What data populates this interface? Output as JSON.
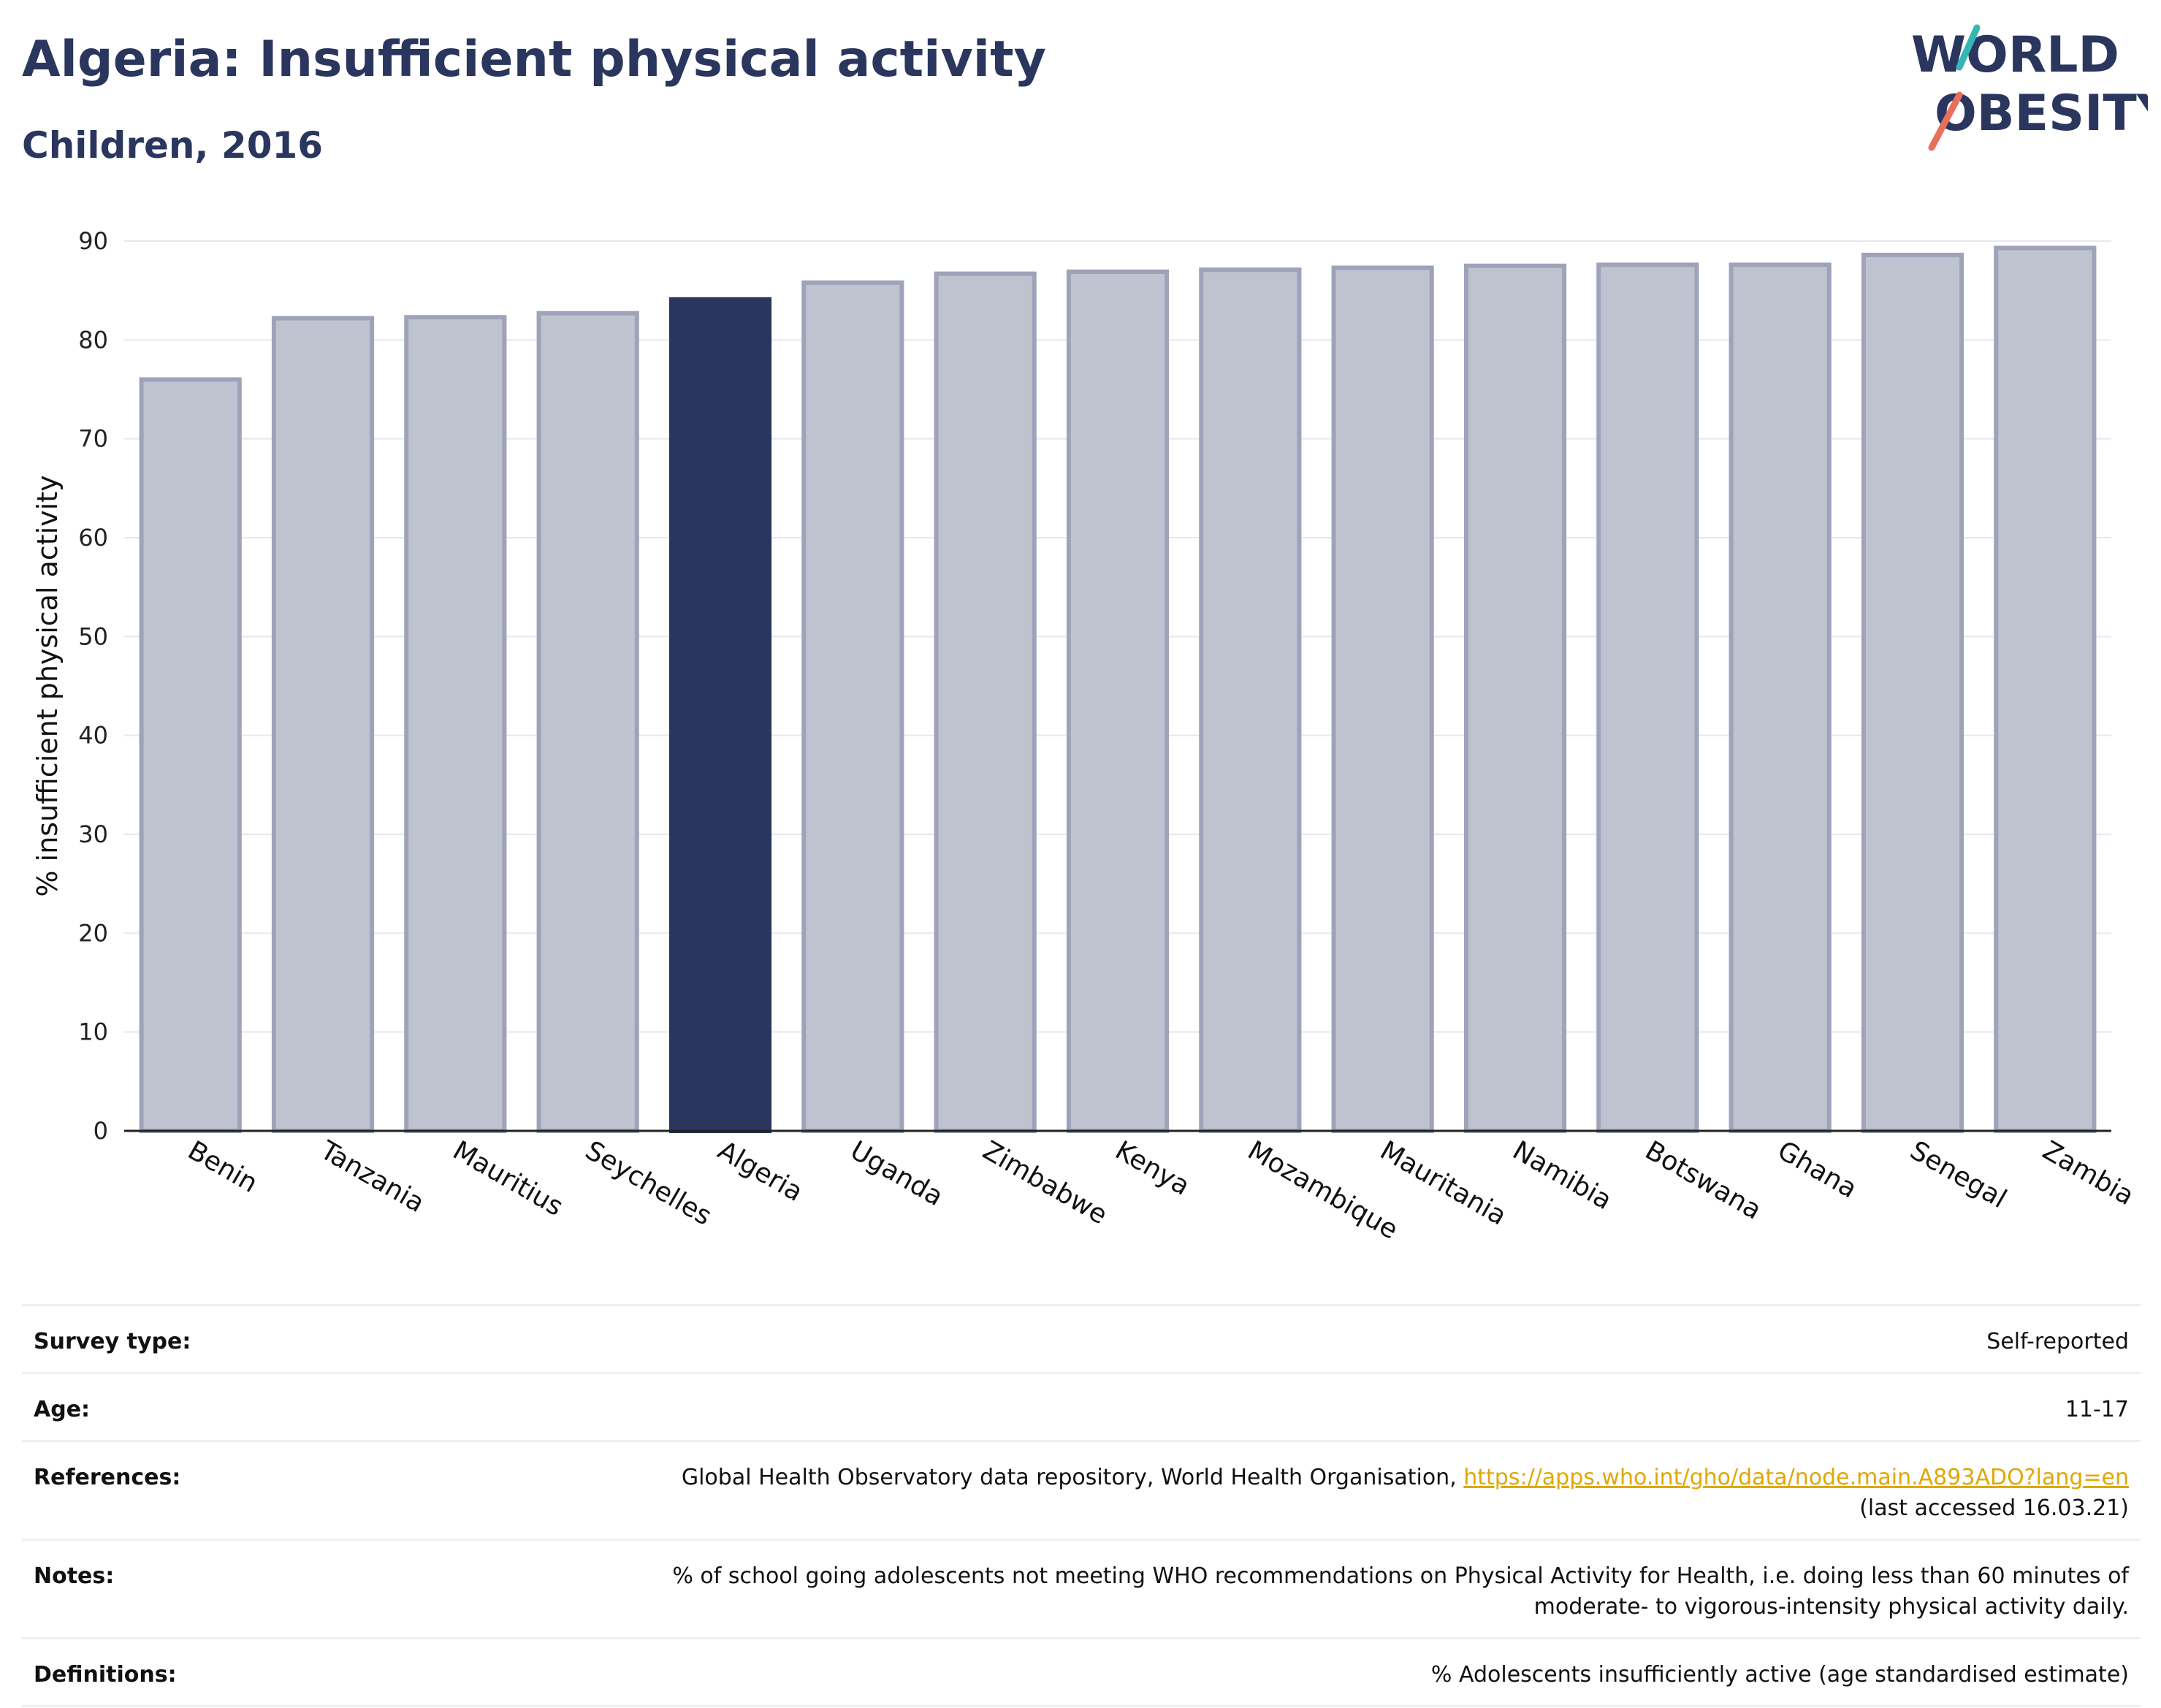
{
  "header": {
    "title": "Algeria: Insufficient physical activity",
    "subtitle": "Children, 2016",
    "logo": {
      "line1": "WORLD",
      "line2": "OBESITY"
    }
  },
  "colors": {
    "highlight": "#2a365e",
    "bar_fill": "#bfc3d0",
    "bar_stroke": "#9ea3ba",
    "grid": "#e6e8ef",
    "accent_teal": "#35b6b4",
    "accent_coral": "#e8705a",
    "link": "#e0a800"
  },
  "chart_data": {
    "type": "bar",
    "title": "Algeria: Insufficient physical activity",
    "subtitle": "Children, 2016",
    "xlabel": "",
    "ylabel": "% insufficient physical activity",
    "ylim": [
      0,
      90
    ],
    "yticks": [
      0,
      10,
      20,
      30,
      40,
      50,
      60,
      70,
      80,
      90
    ],
    "grid": true,
    "highlight": "Algeria",
    "categories": [
      "Benin",
      "Tanzania",
      "Mauritius",
      "Seychelles",
      "Algeria",
      "Uganda",
      "Zimbabwe",
      "Kenya",
      "Mozambique",
      "Mauritania",
      "Namibia",
      "Botswana",
      "Ghana",
      "Senegal",
      "Zambia"
    ],
    "values": [
      76.0,
      82.2,
      82.3,
      82.7,
      84.1,
      85.8,
      86.7,
      86.9,
      87.1,
      87.3,
      87.5,
      87.6,
      87.6,
      88.6,
      89.3
    ]
  },
  "meta": {
    "survey_type": {
      "label": "Survey type:",
      "value": "Self-reported"
    },
    "age": {
      "label": "Age:",
      "value": "11-17"
    },
    "references": {
      "label": "References:",
      "text": "Global Health Observatory data repository, World Health Organisation, ",
      "link": "https://apps.who.int/gho/data/node.main.A893ADO?lang=en",
      "accessed": "(last accessed 16.03.21)"
    },
    "notes": {
      "label": "Notes:",
      "line1": "% of school going adolescents not meeting WHO recommendations on Physical Activity for Health, i.e. doing less than 60 minutes of",
      "line2": "moderate- to vigorous-intensity physical activity daily."
    },
    "definitions": {
      "label": "Definitions:",
      "value": "% Adolescents insufficiently active (age standardised estimate)"
    }
  }
}
